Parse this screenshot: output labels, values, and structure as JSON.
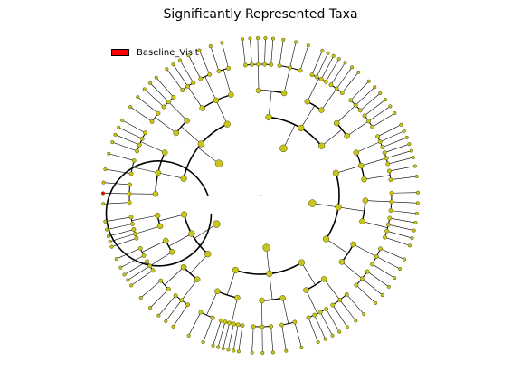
{
  "title": "Significantly Represented Taxa",
  "legend": {
    "items": [
      {
        "label": "Baseline_Visit",
        "color": "#ff0000"
      }
    ]
  },
  "colors": {
    "node_default": "#c8c51c",
    "node_edge": "#4d4d00",
    "branch": "#000000",
    "highlight": "#ff0000"
  }
}
